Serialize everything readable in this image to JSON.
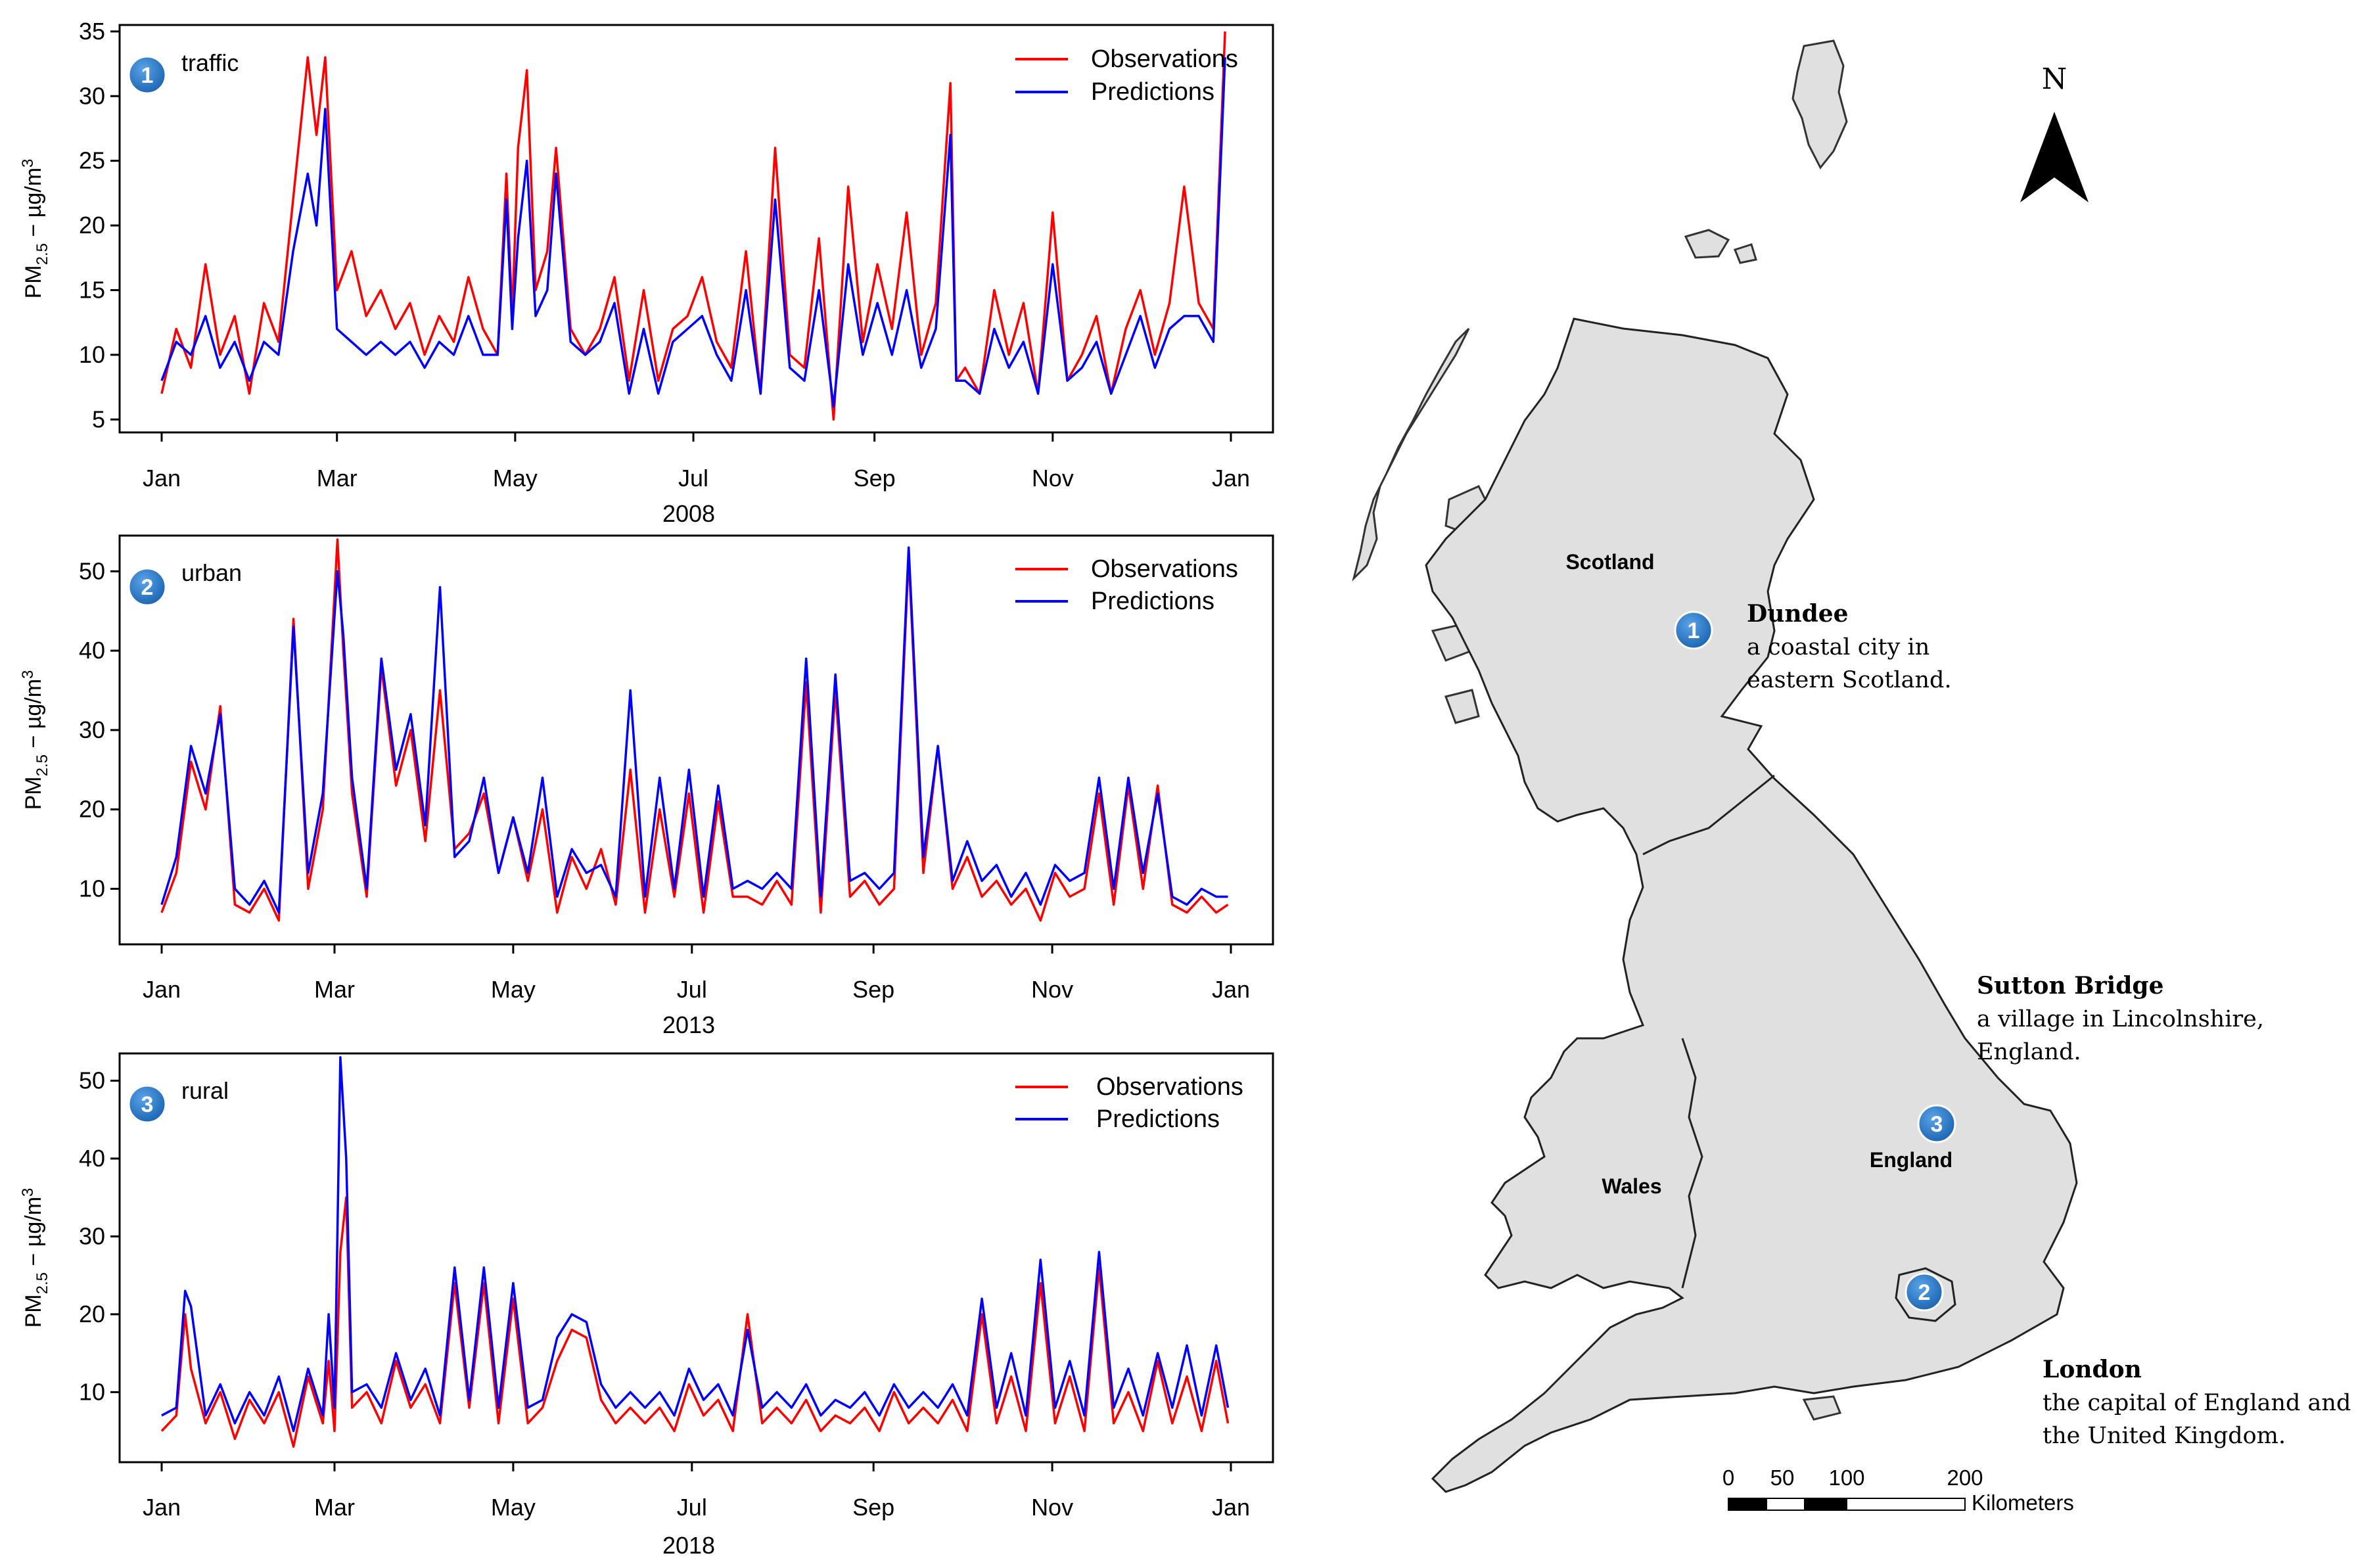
{
  "chart_data": [
    {
      "type": "line",
      "panel_number": "1",
      "site_label": "traffic",
      "year_label": "2008",
      "ylabel": "PM2.5 − µg/m3",
      "ylim": [
        4,
        35.5
      ],
      "yticks": [
        "5",
        "10",
        "15",
        "20",
        "25",
        "30",
        "35"
      ],
      "xticks": [
        "Jan",
        "Mar",
        "May",
        "Jul",
        "Sep",
        "Nov",
        "Jan"
      ],
      "xtick_days": [
        0,
        60,
        121,
        182,
        244,
        305,
        366
      ],
      "legend": [
        "Observations",
        "Predictions"
      ],
      "series": [
        {
          "name": "Observations",
          "color": "#ff0000",
          "x": [
            0,
            5,
            10,
            15,
            20,
            25,
            30,
            35,
            40,
            45,
            50,
            53,
            56,
            60,
            65,
            70,
            75,
            80,
            85,
            90,
            95,
            100,
            105,
            110,
            115,
            118,
            120,
            122,
            125,
            128,
            132,
            135,
            140,
            145,
            150,
            155,
            160,
            165,
            170,
            175,
            180,
            185,
            190,
            195,
            200,
            205,
            210,
            215,
            220,
            225,
            230,
            235,
            240,
            245,
            250,
            255,
            260,
            265,
            270,
            272,
            275,
            280,
            285,
            290,
            295,
            300,
            305,
            310,
            315,
            320,
            325,
            330,
            335,
            340,
            345,
            350,
            355,
            360,
            364
          ],
          "values": [
            7,
            12,
            9,
            17,
            10,
            13,
            7,
            14,
            11,
            22,
            33,
            27,
            33,
            15,
            18,
            13,
            15,
            12,
            14,
            10,
            13,
            11,
            16,
            12,
            10,
            24,
            13,
            26,
            32,
            15,
            18,
            26,
            12,
            10,
            12,
            16,
            8,
            15,
            8,
            12,
            13,
            16,
            11,
            9,
            18,
            7,
            26,
            10,
            9,
            19,
            5,
            23,
            11,
            17,
            12,
            21,
            10,
            14,
            31,
            8,
            9,
            7,
            15,
            10,
            14,
            7,
            21,
            8,
            10,
            13,
            7,
            12,
            15,
            10,
            14,
            23,
            14,
            12,
            35
          ]
        },
        {
          "name": "Predictions",
          "color": "#0000ff",
          "x": [
            0,
            5,
            10,
            15,
            20,
            25,
            30,
            35,
            40,
            45,
            50,
            53,
            56,
            60,
            65,
            70,
            75,
            80,
            85,
            90,
            95,
            100,
            105,
            110,
            115,
            118,
            120,
            122,
            125,
            128,
            132,
            135,
            140,
            145,
            150,
            155,
            160,
            165,
            170,
            175,
            180,
            185,
            190,
            195,
            200,
            205,
            210,
            215,
            220,
            225,
            230,
            235,
            240,
            245,
            250,
            255,
            260,
            265,
            270,
            272,
            275,
            280,
            285,
            290,
            295,
            300,
            305,
            310,
            315,
            320,
            325,
            330,
            335,
            340,
            345,
            350,
            355,
            360,
            364
          ],
          "values": [
            8,
            11,
            10,
            13,
            9,
            11,
            8,
            11,
            10,
            18,
            24,
            20,
            29,
            12,
            11,
            10,
            11,
            10,
            11,
            9,
            11,
            10,
            13,
            10,
            10,
            22,
            12,
            19,
            25,
            13,
            15,
            24,
            11,
            10,
            11,
            14,
            7,
            12,
            7,
            11,
            12,
            13,
            10,
            8,
            15,
            7,
            22,
            9,
            8,
            15,
            6,
            17,
            10,
            14,
            10,
            15,
            9,
            12,
            27,
            8,
            8,
            7,
            12,
            9,
            11,
            7,
            17,
            8,
            9,
            11,
            7,
            10,
            13,
            9,
            12,
            13,
            13,
            11,
            33
          ]
        }
      ]
    },
    {
      "type": "line",
      "panel_number": "2",
      "site_label": "urban",
      "year_label": "2013",
      "ylabel": "PM2.5 − µg/m3",
      "ylim": [
        3,
        54.5
      ],
      "yticks": [
        "10",
        "20",
        "30",
        "40",
        "50"
      ],
      "xticks": [
        "Jan",
        "Mar",
        "May",
        "Jul",
        "Sep",
        "Nov",
        "Jan"
      ],
      "xtick_days": [
        0,
        59,
        120,
        181,
        243,
        304,
        365
      ],
      "legend": [
        "Observations",
        "Predictions"
      ],
      "series": [
        {
          "name": "Observations",
          "color": "#ff0000",
          "x": [
            0,
            5,
            10,
            15,
            20,
            25,
            30,
            35,
            40,
            45,
            50,
            55,
            60,
            62,
            65,
            70,
            75,
            80,
            85,
            90,
            95,
            100,
            105,
            110,
            115,
            120,
            125,
            130,
            135,
            140,
            145,
            150,
            155,
            160,
            165,
            170,
            175,
            180,
            185,
            190,
            195,
            200,
            205,
            210,
            215,
            220,
            225,
            230,
            235,
            240,
            245,
            250,
            255,
            260,
            265,
            270,
            275,
            280,
            285,
            290,
            295,
            300,
            305,
            310,
            315,
            320,
            325,
            330,
            335,
            340,
            345,
            350,
            355,
            360,
            364
          ],
          "values": [
            7,
            12,
            26,
            20,
            33,
            8,
            7,
            10,
            6,
            44,
            10,
            20,
            54,
            40,
            22,
            9,
            38,
            23,
            30,
            16,
            35,
            15,
            17,
            22,
            12,
            19,
            11,
            20,
            7,
            14,
            10,
            15,
            8,
            25,
            7,
            20,
            9,
            22,
            7,
            21,
            9,
            9,
            8,
            11,
            8,
            36,
            7,
            35,
            9,
            11,
            8,
            10,
            52,
            12,
            28,
            10,
            14,
            9,
            11,
            8,
            10,
            6,
            12,
            9,
            10,
            22,
            8,
            23,
            10,
            23,
            8,
            7,
            9,
            7,
            8
          ]
        },
        {
          "name": "Predictions",
          "color": "#0000ff",
          "x": [
            0,
            5,
            10,
            15,
            20,
            25,
            30,
            35,
            40,
            45,
            50,
            55,
            60,
            62,
            65,
            70,
            75,
            80,
            85,
            90,
            95,
            100,
            105,
            110,
            115,
            120,
            125,
            130,
            135,
            140,
            145,
            150,
            155,
            160,
            165,
            170,
            175,
            180,
            185,
            190,
            195,
            200,
            205,
            210,
            215,
            220,
            225,
            230,
            235,
            240,
            245,
            250,
            255,
            260,
            265,
            270,
            275,
            280,
            285,
            290,
            295,
            300,
            305,
            310,
            315,
            320,
            325,
            330,
            335,
            340,
            345,
            350,
            355,
            360,
            364
          ],
          "values": [
            8,
            14,
            28,
            22,
            32,
            10,
            8,
            11,
            7,
            43,
            12,
            22,
            50,
            42,
            24,
            10,
            39,
            25,
            32,
            18,
            48,
            14,
            16,
            24,
            12,
            19,
            12,
            24,
            9,
            15,
            12,
            13,
            9,
            35,
            9,
            24,
            10,
            25,
            9,
            23,
            10,
            11,
            10,
            12,
            10,
            39,
            9,
            37,
            11,
            12,
            10,
            12,
            53,
            14,
            28,
            11,
            16,
            11,
            13,
            9,
            12,
            8,
            13,
            11,
            12,
            24,
            10,
            24,
            12,
            22,
            9,
            8,
            10,
            9,
            9
          ]
        }
      ]
    },
    {
      "type": "line",
      "panel_number": "3",
      "site_label": "rural",
      "year_label": "2018",
      "ylabel": "PM2.5 − µg/m3",
      "ylim": [
        1,
        53.5
      ],
      "yticks": [
        "10",
        "20",
        "30",
        "40",
        "50"
      ],
      "xticks": [
        "Jan",
        "Mar",
        "May",
        "Jul",
        "Sep",
        "Nov",
        "Jan"
      ],
      "xtick_days": [
        0,
        59,
        120,
        181,
        243,
        304,
        365
      ],
      "legend": [
        "Observations",
        "Predictions"
      ],
      "series": [
        {
          "name": "Observations",
          "color": "#ff0000",
          "x": [
            0,
            5,
            8,
            10,
            15,
            20,
            25,
            30,
            35,
            40,
            45,
            50,
            55,
            57,
            59,
            61,
            63,
            65,
            70,
            75,
            80,
            85,
            90,
            95,
            100,
            105,
            110,
            115,
            120,
            125,
            130,
            135,
            140,
            145,
            150,
            155,
            160,
            165,
            170,
            175,
            180,
            185,
            190,
            195,
            200,
            205,
            210,
            215,
            220,
            225,
            230,
            235,
            240,
            245,
            250,
            255,
            260,
            265,
            270,
            275,
            280,
            285,
            290,
            295,
            300,
            305,
            310,
            315,
            320,
            325,
            330,
            335,
            340,
            345,
            350,
            355,
            360,
            364
          ],
          "values": [
            5,
            7,
            20,
            13,
            6,
            10,
            4,
            9,
            6,
            10,
            3,
            12,
            6,
            14,
            5,
            28,
            35,
            8,
            10,
            6,
            14,
            8,
            11,
            6,
            24,
            8,
            24,
            6,
            22,
            6,
            8,
            14,
            18,
            17,
            9,
            6,
            8,
            6,
            8,
            5,
            11,
            7,
            9,
            5,
            20,
            6,
            8,
            6,
            9,
            5,
            7,
            6,
            8,
            5,
            10,
            6,
            8,
            6,
            9,
            5,
            20,
            6,
            12,
            5,
            24,
            6,
            12,
            5,
            26,
            6,
            10,
            5,
            14,
            6,
            12,
            5,
            14,
            6
          ]
        },
        {
          "name": "Predictions",
          "color": "#0000ff",
          "x": [
            0,
            5,
            8,
            10,
            15,
            20,
            25,
            30,
            35,
            40,
            45,
            50,
            55,
            57,
            59,
            61,
            63,
            65,
            70,
            75,
            80,
            85,
            90,
            95,
            100,
            105,
            110,
            115,
            120,
            125,
            130,
            135,
            140,
            145,
            150,
            155,
            160,
            165,
            170,
            175,
            180,
            185,
            190,
            195,
            200,
            205,
            210,
            215,
            220,
            225,
            230,
            235,
            240,
            245,
            250,
            255,
            260,
            265,
            270,
            275,
            280,
            285,
            290,
            295,
            300,
            305,
            310,
            315,
            320,
            325,
            330,
            335,
            340,
            345,
            350,
            355,
            360,
            364
          ],
          "values": [
            7,
            8,
            23,
            21,
            7,
            11,
            6,
            10,
            7,
            12,
            5,
            13,
            7,
            20,
            8,
            53,
            40,
            10,
            11,
            8,
            15,
            9,
            13,
            7,
            26,
            9,
            26,
            8,
            24,
            8,
            9,
            17,
            20,
            19,
            11,
            8,
            10,
            8,
            10,
            7,
            13,
            9,
            11,
            7,
            18,
            8,
            10,
            8,
            11,
            7,
            9,
            8,
            10,
            7,
            11,
            8,
            10,
            8,
            11,
            7,
            22,
            8,
            15,
            7,
            27,
            8,
            14,
            7,
            28,
            8,
            13,
            7,
            15,
            8,
            16,
            7,
            16,
            8
          ]
        }
      ]
    }
  ],
  "map": {
    "north_label": "N",
    "regions": [
      "Scotland",
      "Wales",
      "England"
    ],
    "cities": [
      {
        "number": "1",
        "name": "Dundee",
        "description": [
          "a coastal city in",
          "eastern Scotland."
        ]
      },
      {
        "number": "3",
        "name": "Sutton Bridge",
        "description": [
          "a village in Lincolnshire,",
          "England."
        ]
      },
      {
        "number": "2",
        "name": "London",
        "description": [
          "the capital of England and",
          "the United Kingdom."
        ]
      }
    ],
    "scale_bar": {
      "ticks": [
        "0",
        "50",
        "100",
        "200"
      ],
      "unit": "Kilometers"
    },
    "colors": {
      "land": "#e0e0e0",
      "badge": "#2173c4"
    }
  }
}
